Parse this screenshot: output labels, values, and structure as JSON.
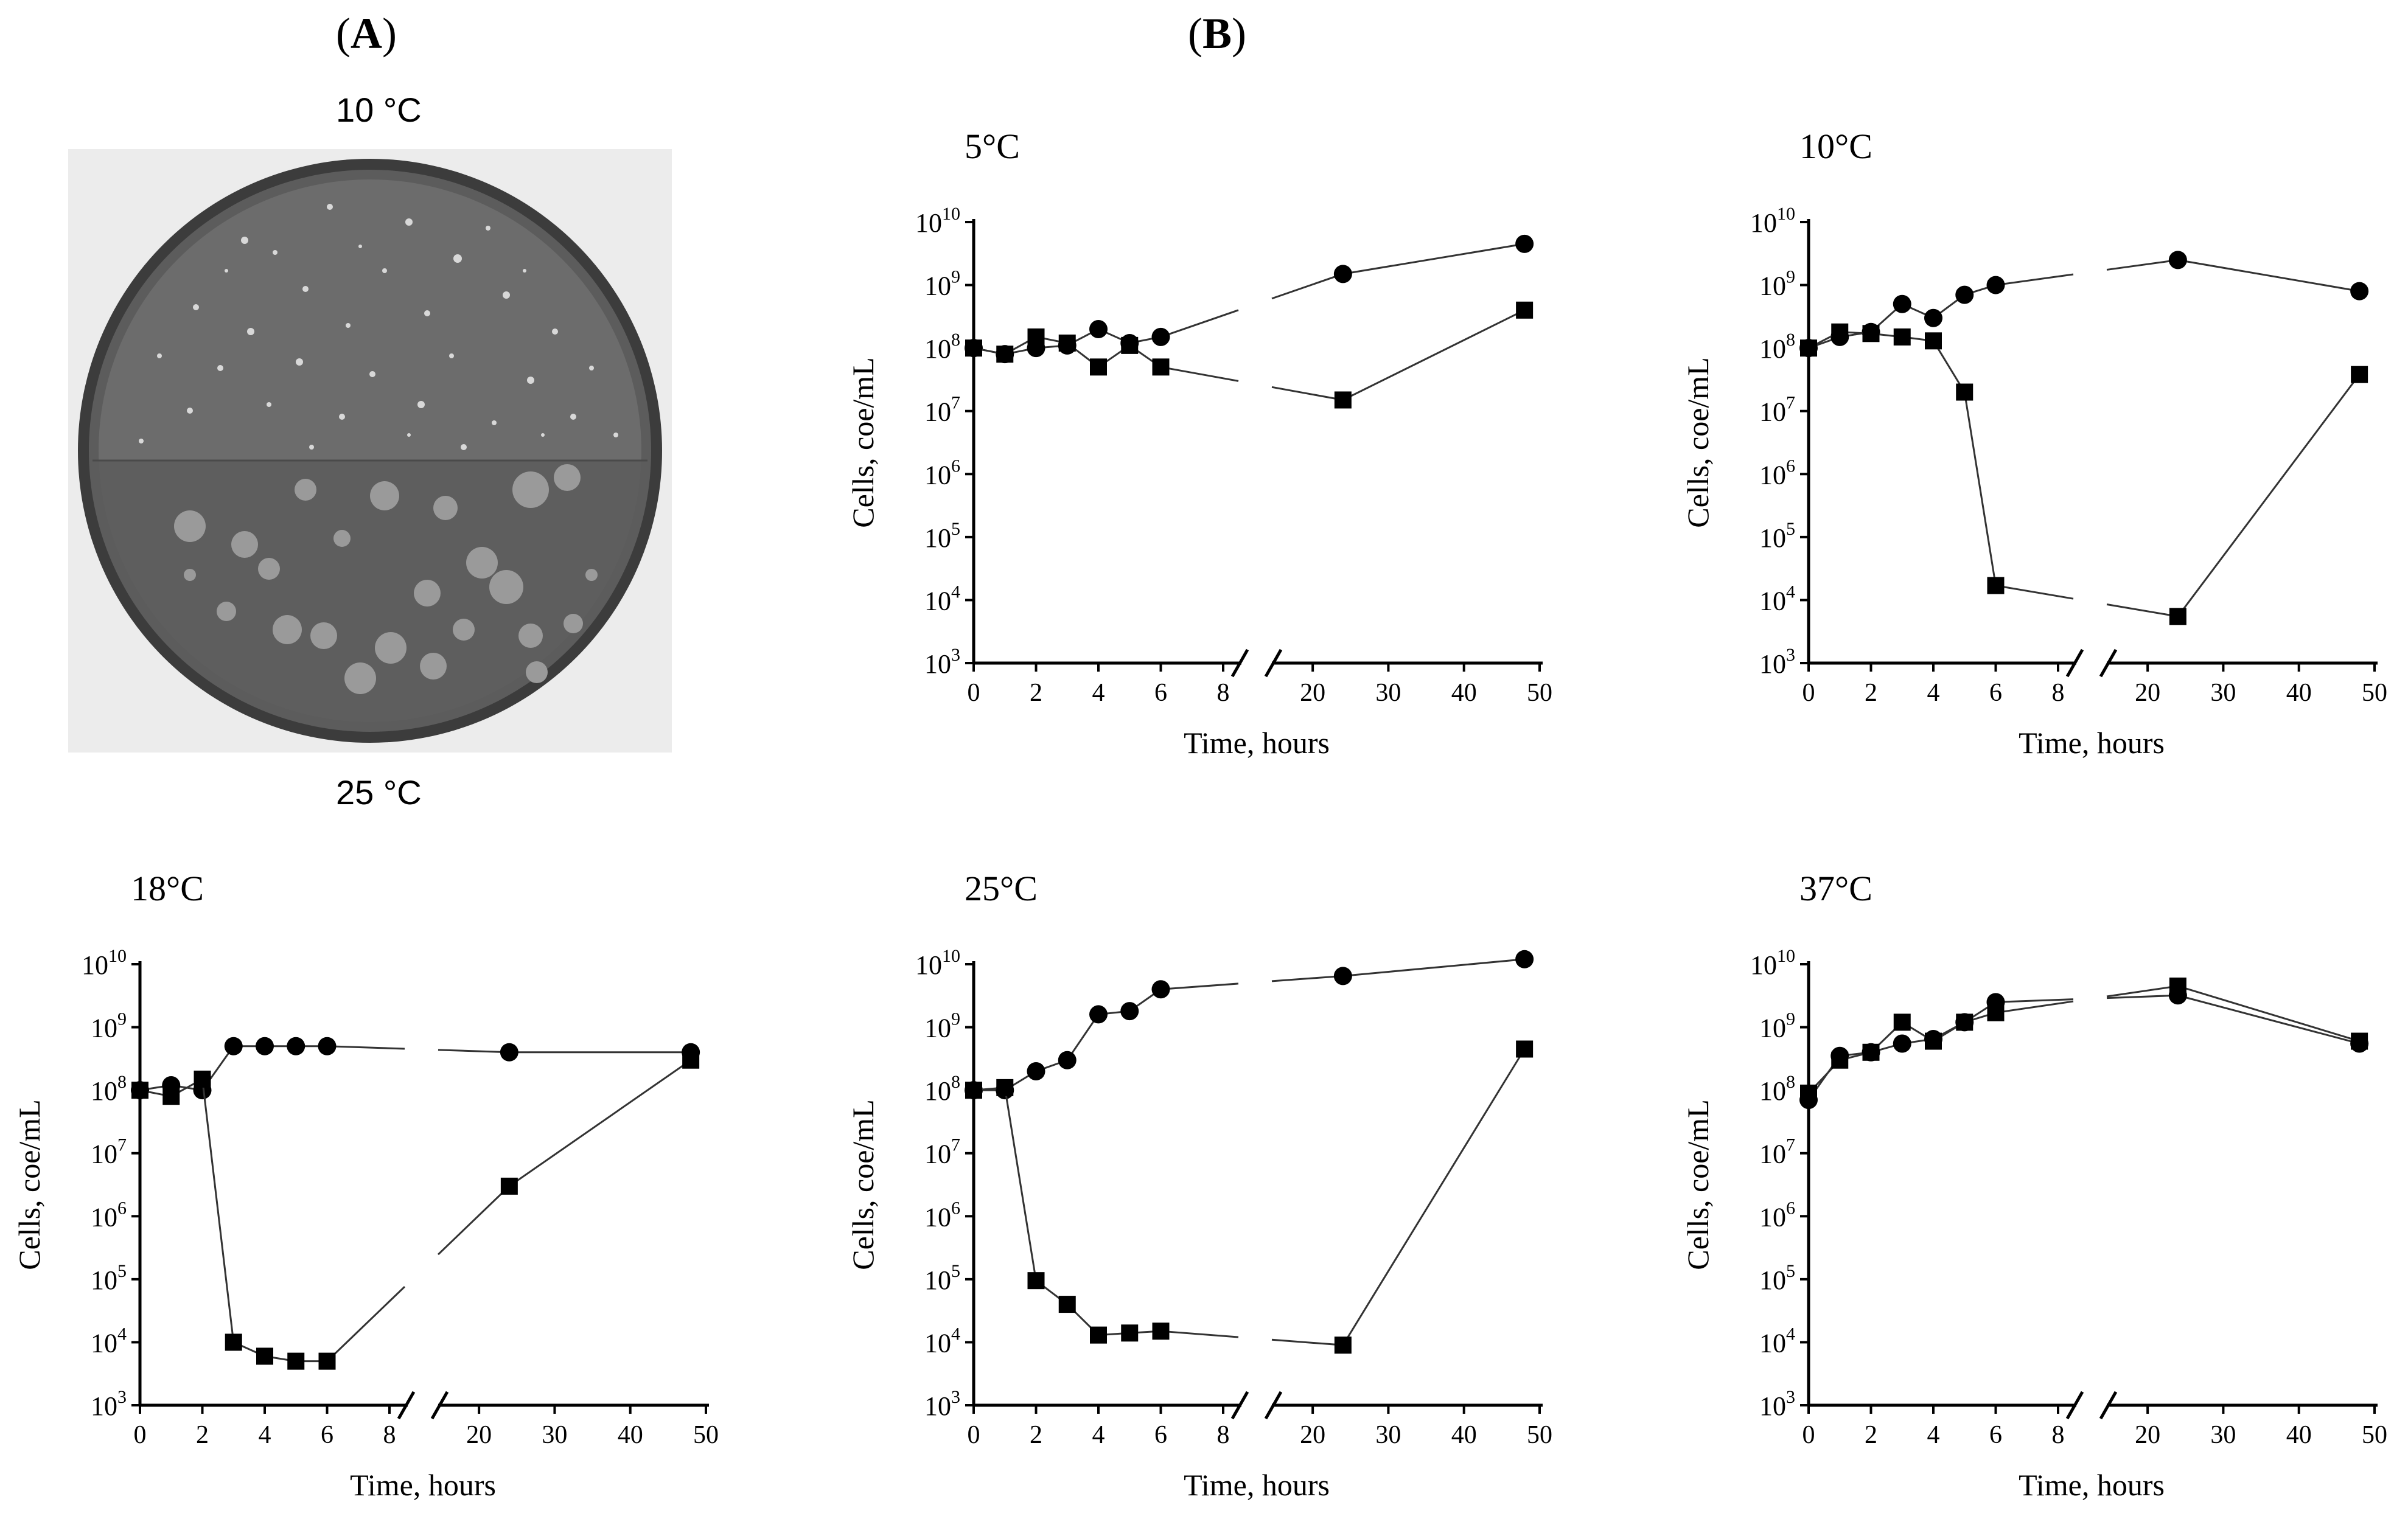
{
  "panel_a": {
    "letter_open": "(",
    "letter": "A",
    "letter_close": ")",
    "top_label": "10 °C",
    "bottom_label": "25 °C"
  },
  "panel_b": {
    "letter_open": "(",
    "letter": "B",
    "letter_close": ")"
  },
  "chart_data": [
    {
      "type": "line",
      "title": "5°C",
      "xlabel": "Time, hours",
      "ylabel": "Cells, coe/mL",
      "yscale": "log",
      "ylim": [
        1000,
        10000000000
      ],
      "x_ticks_left": [
        "0",
        "2",
        "4",
        "6",
        "8"
      ],
      "x_ticks_right": [
        "20",
        "30",
        "40",
        "50"
      ],
      "y_tick_exponents": [
        "3",
        "4",
        "5",
        "6",
        "7",
        "8",
        "9",
        "10"
      ],
      "series": [
        {
          "name": "circles",
          "marker": "circle",
          "x": [
            0,
            1,
            2,
            3,
            4,
            5,
            6,
            24,
            48
          ],
          "y": [
            100000000,
            80000000,
            100000000,
            110000000,
            200000000,
            120000000,
            150000000,
            1500000000,
            4500000000
          ]
        },
        {
          "name": "squares",
          "marker": "square",
          "x": [
            0,
            1,
            2,
            3,
            4,
            5,
            6,
            24,
            48
          ],
          "y": [
            100000000,
            80000000,
            150000000,
            120000000,
            50000000,
            110000000,
            50000000,
            15000000,
            400000000
          ]
        }
      ]
    },
    {
      "type": "line",
      "title": "10°C",
      "xlabel": "Time, hours",
      "ylabel": "Cells, coe/mL",
      "yscale": "log",
      "ylim": [
        1000,
        10000000000
      ],
      "x_ticks_left": [
        "0",
        "2",
        "4",
        "6",
        "8"
      ],
      "x_ticks_right": [
        "20",
        "30",
        "40",
        "50"
      ],
      "y_tick_exponents": [
        "3",
        "4",
        "5",
        "6",
        "7",
        "8",
        "9",
        "10"
      ],
      "series": [
        {
          "name": "circles",
          "marker": "circle",
          "x": [
            0,
            1,
            2,
            3,
            4,
            5,
            6,
            24,
            48
          ],
          "y": [
            100000000,
            150000000,
            180000000,
            500000000,
            300000000,
            700000000,
            1000000000,
            2500000000,
            800000000
          ]
        },
        {
          "name": "squares",
          "marker": "square",
          "x": [
            0,
            1,
            2,
            3,
            4,
            5,
            6,
            24,
            48
          ],
          "y": [
            100000000,
            180000000,
            170000000,
            150000000,
            130000000,
            20000000,
            17000,
            5500,
            38000000
          ]
        }
      ]
    },
    {
      "type": "line",
      "title": "18°C",
      "xlabel": "Time, hours",
      "ylabel": "Cells, coe/mL",
      "yscale": "log",
      "ylim": [
        1000,
        10000000000
      ],
      "x_ticks_left": [
        "0",
        "2",
        "4",
        "6",
        "8"
      ],
      "x_ticks_right": [
        "20",
        "30",
        "40",
        "50"
      ],
      "y_tick_exponents": [
        "3",
        "4",
        "5",
        "6",
        "7",
        "8",
        "9",
        "10"
      ],
      "series": [
        {
          "name": "circles",
          "marker": "circle",
          "x": [
            0,
            1,
            2,
            3,
            4,
            5,
            6,
            24,
            48
          ],
          "y": [
            100000000,
            120000000,
            100000000,
            500000000,
            500000000,
            500000000,
            500000000,
            400000000,
            400000000
          ]
        },
        {
          "name": "squares",
          "marker": "square",
          "x": [
            0,
            1,
            2,
            3,
            4,
            5,
            6,
            24,
            48
          ],
          "y": [
            100000000,
            80000000,
            150000000,
            10000,
            6000,
            5000,
            5000,
            3000000,
            300000000
          ]
        }
      ]
    },
    {
      "type": "line",
      "title": "25°C",
      "xlabel": "Time, hours",
      "ylabel": "Cells, coe/mL",
      "yscale": "log",
      "ylim": [
        1000,
        10000000000
      ],
      "x_ticks_left": [
        "0",
        "2",
        "4",
        "6",
        "8"
      ],
      "x_ticks_right": [
        "20",
        "30",
        "40",
        "50"
      ],
      "y_tick_exponents": [
        "3",
        "4",
        "5",
        "6",
        "7",
        "8",
        "9",
        "10"
      ],
      "series": [
        {
          "name": "circles",
          "marker": "circle",
          "x": [
            0,
            1,
            2,
            3,
            4,
            5,
            6,
            24,
            48
          ],
          "y": [
            100000000,
            100000000,
            200000000,
            300000000,
            1600000000,
            1800000000,
            4000000000,
            6500000000,
            12000000000
          ]
        },
        {
          "name": "squares",
          "marker": "square",
          "x": [
            0,
            1,
            2,
            3,
            4,
            5,
            6,
            24,
            48
          ],
          "y": [
            100000000,
            110000000,
            95000,
            40000,
            13000,
            14000,
            15000,
            9000,
            450000000
          ]
        }
      ]
    },
    {
      "type": "line",
      "title": "37°C",
      "xlabel": "Time, hours",
      "ylabel": "Cells, coe/mL",
      "yscale": "log",
      "ylim": [
        1000,
        10000000000
      ],
      "x_ticks_left": [
        "0",
        "2",
        "4",
        "6",
        "8"
      ],
      "x_ticks_right": [
        "20",
        "30",
        "40",
        "50"
      ],
      "y_tick_exponents": [
        "3",
        "4",
        "5",
        "6",
        "7",
        "8",
        "9",
        "10"
      ],
      "series": [
        {
          "name": "circles",
          "marker": "circle",
          "x": [
            0,
            1,
            2,
            3,
            4,
            5,
            6,
            24,
            48
          ],
          "y": [
            70000000,
            350000000,
            400000000,
            550000000,
            650000000,
            1200000000,
            2500000000,
            3200000000,
            550000000
          ]
        },
        {
          "name": "squares",
          "marker": "square",
          "x": [
            0,
            1,
            2,
            3,
            4,
            5,
            6,
            24,
            48
          ],
          "y": [
            90000000,
            300000000,
            400000000,
            1200000000,
            600000000,
            1200000000,
            1700000000,
            4500000000,
            600000000
          ]
        }
      ]
    }
  ]
}
